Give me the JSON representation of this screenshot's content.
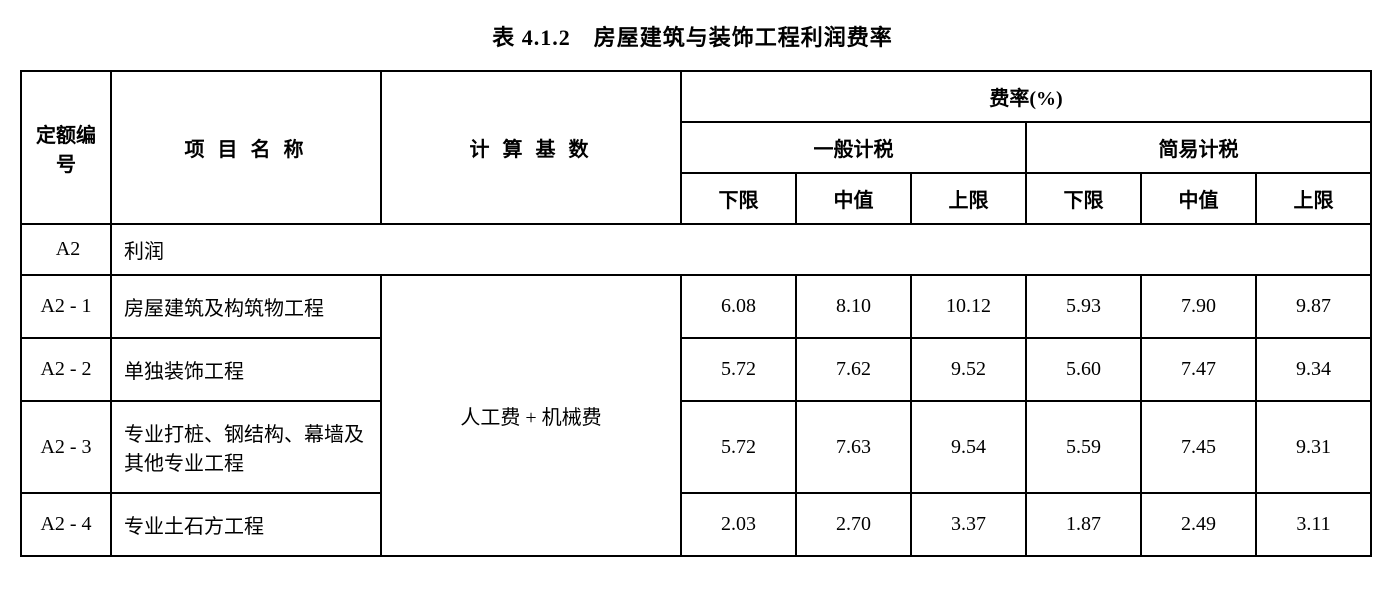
{
  "title": "表 4.1.2　房屋建筑与装饰工程利润费率",
  "headers": {
    "code": "定额编号",
    "name": "项 目 名 称",
    "basis": "计 算 基 数",
    "rate": "费率(%)",
    "general": "一般计税",
    "simple": "简易计税",
    "lower": "下限",
    "middle": "中值",
    "upper": "上限"
  },
  "section": {
    "code": "A2",
    "label": "利润"
  },
  "basis_value": "人工费 + 机械费",
  "rows": [
    {
      "code": "A2 - 1",
      "name": "房屋建筑及构筑物工程",
      "general": {
        "lower": "6.08",
        "middle": "8.10",
        "upper": "10.12"
      },
      "simple": {
        "lower": "5.93",
        "middle": "7.90",
        "upper": "9.87"
      }
    },
    {
      "code": "A2 - 2",
      "name": "单独装饰工程",
      "general": {
        "lower": "5.72",
        "middle": "7.62",
        "upper": "9.52"
      },
      "simple": {
        "lower": "5.60",
        "middle": "7.47",
        "upper": "9.34"
      }
    },
    {
      "code": "A2 - 3",
      "name": "专业打桩、钢结构、幕墙及其他专业工程",
      "general": {
        "lower": "5.72",
        "middle": "7.63",
        "upper": "9.54"
      },
      "simple": {
        "lower": "5.59",
        "middle": "7.45",
        "upper": "9.31"
      }
    },
    {
      "code": "A2 - 4",
      "name": "专业土石方工程",
      "general": {
        "lower": "2.03",
        "middle": "2.70",
        "upper": "3.37"
      },
      "simple": {
        "lower": "1.87",
        "middle": "2.49",
        "upper": "3.11"
      }
    }
  ],
  "styling": {
    "border_color": "#000000",
    "background_color": "#ffffff",
    "text_color": "#000000",
    "title_fontsize": 22,
    "cell_fontsize": 20,
    "border_width": 2,
    "font_family": "SimSun"
  }
}
